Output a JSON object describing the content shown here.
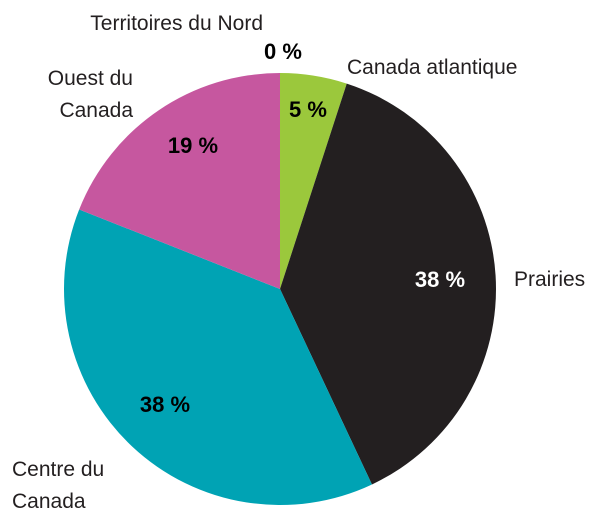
{
  "chart_data": {
    "type": "pie",
    "categories": [
      "Territoires du Nord",
      "Canada atlantique",
      "Prairies",
      "Centre du Canada",
      "Ouest du Canada"
    ],
    "values": [
      0,
      5,
      38,
      38,
      19
    ],
    "value_labels": [
      "0 %",
      "5 %",
      "38 %",
      "38 %",
      "19 %"
    ],
    "colors": [
      "#7a7a7a",
      "#9bc83c",
      "#231f20",
      "#00a3b4",
      "#c6579f"
    ]
  }
}
